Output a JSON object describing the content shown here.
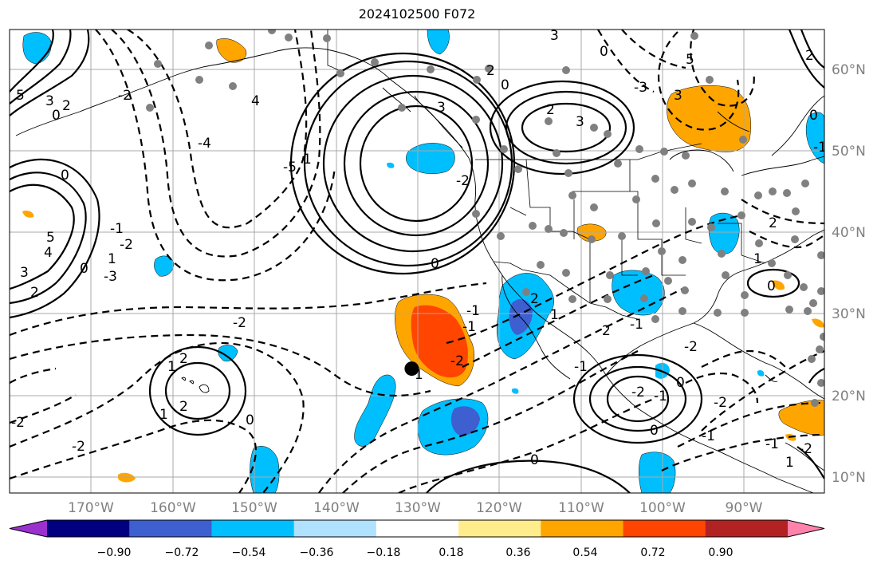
{
  "title": "2024102500 F072",
  "lon_labels": [
    "170°W",
    "160°W",
    "150°W",
    "140°W",
    "130°W",
    "120°W",
    "110°W",
    "100°W",
    "90°W"
  ],
  "lat_labels": [
    "60°N",
    "50°N",
    "40°N",
    "30°N",
    "20°N",
    "10°N"
  ],
  "colorbar": {
    "ticks": [
      "−0.90",
      "−0.72",
      "−0.54",
      "−0.36",
      "−0.18",
      "0.18",
      "0.36",
      "0.54",
      "0.72",
      "0.90"
    ],
    "colors": [
      "#9b30d0",
      "#000080",
      "#3d5fcf",
      "#00bfff",
      "#b0e2ff",
      "#ffffff",
      "#ffec8b",
      "#ffa500",
      "#ff4500",
      "#b22222",
      "#ff82ab"
    ]
  },
  "contour_labels": [
    "5",
    "3",
    "2",
    "0",
    "-2",
    "4",
    "3",
    "2",
    "0",
    "3",
    "2",
    "0",
    "3",
    "-3",
    "5",
    "3",
    "1",
    "-4",
    "-5",
    "-2",
    "-3",
    "1",
    "-1",
    "0",
    "5",
    "4",
    "3",
    "2",
    "0",
    "-2",
    "-2",
    "2",
    "2",
    "1",
    "0",
    "-2",
    "-2",
    "1",
    "0",
    "-2",
    "-1",
    "-1",
    "2",
    "2",
    "-1",
    "1",
    "-1",
    "0",
    "-1",
    "0",
    "-2",
    "0",
    "-2",
    "-2",
    "2",
    "1",
    "0",
    "2",
    "0",
    "-1",
    "-2",
    "-1",
    "-1",
    "1",
    "1"
  ],
  "marker": {
    "name": "storm-center",
    "lon": -130.7,
    "lat": 23.3
  }
}
